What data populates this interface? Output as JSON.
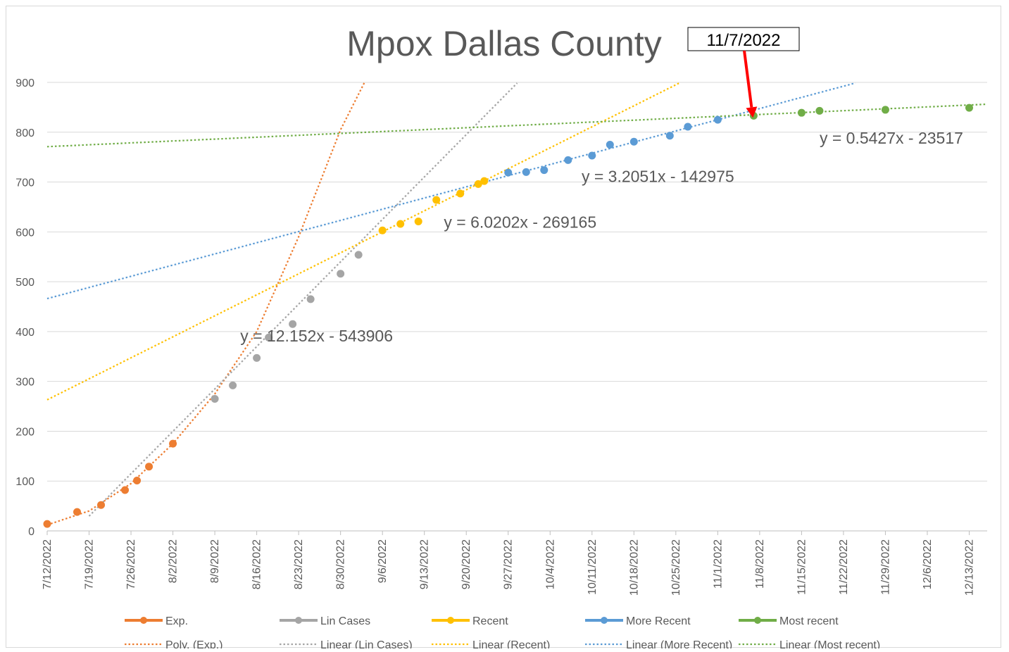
{
  "chart_data": {
    "type": "scatter",
    "title": "Mpox Dallas County",
    "xlabel": "",
    "ylabel": "",
    "ylim": [
      0,
      900
    ],
    "yticks": [
      0,
      100,
      200,
      300,
      400,
      500,
      600,
      700,
      800,
      900
    ],
    "xlim": [
      "2022-07-12",
      "2022-12-16"
    ],
    "xtick_labels": [
      "7/12/2022",
      "7/19/2022",
      "7/26/2022",
      "8/2/2022",
      "8/9/2022",
      "8/16/2022",
      "8/23/2022",
      "8/30/2022",
      "9/6/2022",
      "9/13/2022",
      "9/20/2022",
      "9/27/2022",
      "10/4/2022",
      "10/11/2022",
      "10/18/2022",
      "10/25/2022",
      "11/1/2022",
      "11/8/2022",
      "11/15/2022",
      "11/22/2022",
      "11/29/2022",
      "12/6/2022",
      "12/13/2022"
    ],
    "grid": true,
    "legend_position": "bottom",
    "series": [
      {
        "name": "Exp.",
        "color": "#ED7D31",
        "points": [
          [
            "2022-07-12",
            14
          ],
          [
            "2022-07-17",
            38
          ],
          [
            "2022-07-21",
            52
          ],
          [
            "2022-07-25",
            82
          ],
          [
            "2022-07-27",
            101
          ],
          [
            "2022-07-29",
            129
          ],
          [
            "2022-08-02",
            175
          ]
        ]
      },
      {
        "name": "Lin Cases",
        "color": "#A5A5A5",
        "points": [
          [
            "2022-08-09",
            265
          ],
          [
            "2022-08-12",
            292
          ],
          [
            "2022-08-16",
            347
          ],
          [
            "2022-08-18",
            388
          ],
          [
            "2022-08-22",
            415
          ],
          [
            "2022-08-25",
            465
          ],
          [
            "2022-08-30",
            516
          ],
          [
            "2022-09-02",
            554
          ]
        ]
      },
      {
        "name": "Recent",
        "color": "#FFC000",
        "points": [
          [
            "2022-09-06",
            603
          ],
          [
            "2022-09-09",
            616
          ],
          [
            "2022-09-12",
            621
          ],
          [
            "2022-09-15",
            664
          ],
          [
            "2022-09-19",
            677
          ],
          [
            "2022-09-22",
            696
          ],
          [
            "2022-09-23",
            702
          ]
        ]
      },
      {
        "name": "More Recent",
        "color": "#5B9BD5",
        "points": [
          [
            "2022-09-27",
            719
          ],
          [
            "2022-09-30",
            720
          ],
          [
            "2022-10-03",
            724
          ],
          [
            "2022-10-07",
            744
          ],
          [
            "2022-10-11",
            753
          ],
          [
            "2022-10-14",
            775
          ],
          [
            "2022-10-18",
            781
          ],
          [
            "2022-10-24",
            793
          ],
          [
            "2022-10-27",
            811
          ],
          [
            "2022-11-01",
            825
          ]
        ]
      },
      {
        "name": "Most recent",
        "color": "#70AD47",
        "points": [
          [
            "2022-11-07",
            833
          ],
          [
            "2022-11-15",
            839
          ],
          [
            "2022-11-18",
            843
          ],
          [
            "2022-11-29",
            845
          ],
          [
            "2022-12-13",
            849
          ]
        ]
      }
    ],
    "trendlines": [
      {
        "name": "Poly. (Exp.)",
        "color": "#ED7D31",
        "kind": "polynomial",
        "points": [
          [
            "2022-07-12",
            12
          ],
          [
            "2022-07-19",
            40
          ],
          [
            "2022-07-26",
            95
          ],
          [
            "2022-08-02",
            175
          ],
          [
            "2022-08-09",
            275
          ],
          [
            "2022-08-16",
            400
          ],
          [
            "2022-08-23",
            590
          ],
          [
            "2022-08-30",
            805
          ],
          [
            "2022-09-03",
            900
          ]
        ]
      },
      {
        "name": "Linear (Lin Cases)",
        "color": "#A5A5A5",
        "kind": "linear",
        "slope": 12.152,
        "intercept": -543906,
        "x_range": [
          "2022-07-19",
          "2022-10-01"
        ]
      },
      {
        "name": "Linear (Recent)",
        "color": "#FFC000",
        "kind": "linear",
        "slope": 6.0202,
        "intercept": -269165,
        "x_range": [
          "2022-07-12",
          "2022-10-26"
        ]
      },
      {
        "name": "Linear (More Recent)",
        "color": "#5B9BD5",
        "kind": "linear",
        "slope": 3.2051,
        "intercept": -142975,
        "x_range": [
          "2022-07-12",
          "2022-11-24"
        ]
      },
      {
        "name": "Linear (Most recent)",
        "color": "#70AD47",
        "kind": "linear",
        "slope": 0.5427,
        "intercept": -23517,
        "x_range": [
          "2022-07-12",
          "2022-12-16"
        ]
      }
    ],
    "equations": [
      {
        "text": "y = 12.152x - 543906",
        "anchor": [
          "2022-08-26",
          380
        ]
      },
      {
        "text": "y = 6.0202x - 269165",
        "anchor": [
          "2022-09-29",
          608
        ]
      },
      {
        "text": "y = 3.2051x - 142975",
        "anchor": [
          "2022-10-22",
          700
        ]
      },
      {
        "text": "y = 0.5427x - 23517",
        "anchor": [
          "2022-11-30",
          777
        ]
      }
    ],
    "callout": {
      "text": "11/7/2022",
      "target": [
        "2022-11-07",
        833
      ],
      "color": "#FF0000"
    }
  }
}
